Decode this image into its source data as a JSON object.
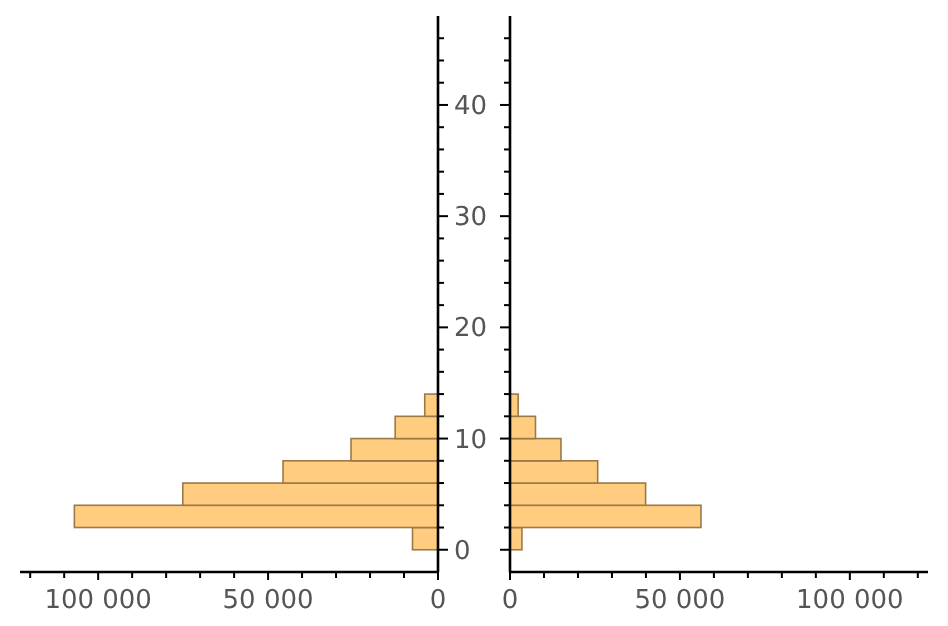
{
  "chart_data": [
    {
      "type": "histogram",
      "orientation": "horizontal",
      "bins": [
        0,
        2,
        4,
        6,
        8,
        10,
        12,
        14
      ],
      "values": [
        7500,
        107000,
        75100,
        45600,
        25600,
        12600,
        3900
      ],
      "color": "#ffcc80",
      "xlim": [
        123000,
        0
      ],
      "xticks": [
        {
          "value": 120000,
          "label": null
        },
        {
          "value": 110000,
          "label": null
        },
        {
          "value": 100000,
          "label": "100 000"
        },
        {
          "value": 90000,
          "label": null
        },
        {
          "value": 80000,
          "label": null
        },
        {
          "value": 70000,
          "label": null
        },
        {
          "value": 60000,
          "label": null
        },
        {
          "value": 50000,
          "label": "50 000"
        },
        {
          "value": 40000,
          "label": null
        },
        {
          "value": 30000,
          "label": null
        },
        {
          "value": 20000,
          "label": null
        },
        {
          "value": 10000,
          "label": null
        },
        0
      ],
      "ylim": [
        -2,
        48
      ],
      "yticks": [
        0,
        {
          "value": 2,
          "label": null
        },
        {
          "value": 4,
          "label": null
        },
        {
          "value": 6,
          "label": null
        },
        {
          "value": 8,
          "label": null
        },
        10,
        {
          "value": 12,
          "label": null
        },
        {
          "value": 14,
          "label": null
        },
        {
          "value": 16,
          "label": null
        },
        {
          "value": 18,
          "label": null
        },
        20,
        {
          "value": 22,
          "label": null
        },
        {
          "value": 24,
          "label": null
        },
        {
          "value": 26,
          "label": null
        },
        {
          "value": 28,
          "label": null
        },
        30,
        {
          "value": 32,
          "label": null
        },
        {
          "value": 34,
          "label": null
        },
        {
          "value": 36,
          "label": null
        },
        {
          "value": 38,
          "label": null
        },
        40,
        {
          "value": 42,
          "label": null
        },
        {
          "value": 44,
          "label": null
        },
        {
          "value": 46,
          "label": null
        }
      ],
      "grid": false
    },
    {
      "type": "histogram",
      "orientation": "horizontal",
      "bins": [
        0,
        2,
        4,
        6,
        8,
        10,
        12,
        14
      ],
      "values": [
        3500,
        56200,
        39900,
        25800,
        15000,
        7500,
        2400
      ],
      "color": "#ffcc80",
      "xlim": [
        0,
        123000
      ],
      "xticks": [
        0,
        {
          "value": 10000,
          "label": null
        },
        {
          "value": 20000,
          "label": null
        },
        {
          "value": 30000,
          "label": null
        },
        {
          "value": 40000,
          "label": null
        },
        {
          "value": 50000,
          "label": "50 000"
        },
        {
          "value": 60000,
          "label": null
        },
        {
          "value": 70000,
          "label": null
        },
        {
          "value": 80000,
          "label": null
        },
        {
          "value": 90000,
          "label": null
        },
        {
          "value": 100000,
          "label": "100 000"
        },
        {
          "value": 110000,
          "label": null
        },
        {
          "value": 120000,
          "label": null
        }
      ],
      "ylim": [
        -2,
        48
      ],
      "yticks": [
        0,
        {
          "value": 2,
          "label": null
        },
        {
          "value": 4,
          "label": null
        },
        {
          "value": 6,
          "label": null
        },
        {
          "value": 8,
          "label": null
        },
        10,
        {
          "value": 12,
          "label": null
        },
        {
          "value": 14,
          "label": null
        },
        {
          "value": 16,
          "label": null
        },
        {
          "value": 18,
          "label": null
        },
        20,
        {
          "value": 22,
          "label": null
        },
        {
          "value": 24,
          "label": null
        },
        {
          "value": 26,
          "label": null
        },
        {
          "value": 28,
          "label": null
        },
        30,
        {
          "value": 32,
          "label": null
        },
        {
          "value": 34,
          "label": null
        },
        {
          "value": 36,
          "label": null
        },
        {
          "value": 38,
          "label": null
        },
        40,
        {
          "value": 42,
          "label": null
        },
        {
          "value": 44,
          "label": null
        },
        {
          "value": 46,
          "label": null
        }
      ],
      "tick_labels": "x",
      "grid": false
    }
  ]
}
